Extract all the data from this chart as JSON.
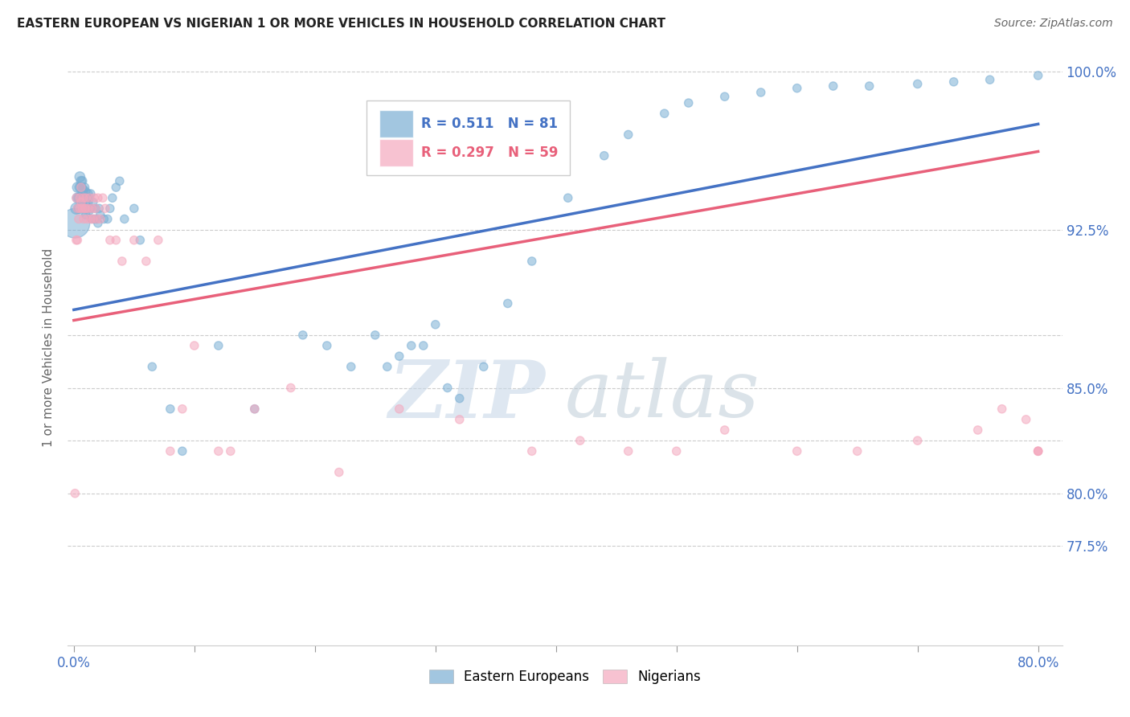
{
  "title": "EASTERN EUROPEAN VS NIGERIAN 1 OR MORE VEHICLES IN HOUSEHOLD CORRELATION CHART",
  "source": "Source: ZipAtlas.com",
  "ylabel": "1 or more Vehicles in Household",
  "blue_color": "#7BAFD4",
  "pink_color": "#F4A8BE",
  "blue_R": 0.511,
  "blue_N": 81,
  "pink_R": 0.297,
  "pink_N": 59,
  "watermark_ZIP": "ZIP",
  "watermark_atlas": "atlas",
  "xlim": [
    -0.005,
    0.82
  ],
  "ylim": [
    0.728,
    1.01
  ],
  "ytick_vals": [
    0.775,
    0.8,
    0.825,
    0.85,
    0.875,
    0.925,
    1.0
  ],
  "ytick_labels_right": [
    "77.5%",
    "80.0%",
    "",
    "85.0%",
    "",
    "92.5%",
    "100.0%"
  ],
  "blue_x": [
    0.001,
    0.002,
    0.003,
    0.003,
    0.004,
    0.004,
    0.005,
    0.005,
    0.005,
    0.006,
    0.006,
    0.007,
    0.007,
    0.007,
    0.008,
    0.008,
    0.008,
    0.009,
    0.009,
    0.009,
    0.01,
    0.01,
    0.01,
    0.011,
    0.011,
    0.012,
    0.012,
    0.013,
    0.013,
    0.014,
    0.014,
    0.015,
    0.016,
    0.017,
    0.018,
    0.019,
    0.02,
    0.021,
    0.022,
    0.025,
    0.028,
    0.03,
    0.032,
    0.035,
    0.038,
    0.042,
    0.05,
    0.055,
    0.065,
    0.08,
    0.09,
    0.12,
    0.15,
    0.19,
    0.21,
    0.23,
    0.25,
    0.26,
    0.27,
    0.28,
    0.29,
    0.3,
    0.31,
    0.32,
    0.34,
    0.36,
    0.38,
    0.41,
    0.44,
    0.46,
    0.49,
    0.51,
    0.54,
    0.57,
    0.6,
    0.63,
    0.66,
    0.7,
    0.73,
    0.76,
    0.8
  ],
  "blue_y": [
    0.928,
    0.935,
    0.94,
    0.945,
    0.935,
    0.94,
    0.94,
    0.945,
    0.95,
    0.945,
    0.948,
    0.94,
    0.944,
    0.948,
    0.936,
    0.94,
    0.944,
    0.935,
    0.94,
    0.945,
    0.932,
    0.938,
    0.943,
    0.935,
    0.94,
    0.938,
    0.942,
    0.934,
    0.94,
    0.935,
    0.942,
    0.93,
    0.938,
    0.93,
    0.935,
    0.93,
    0.928,
    0.935,
    0.932,
    0.93,
    0.93,
    0.935,
    0.94,
    0.945,
    0.948,
    0.93,
    0.935,
    0.92,
    0.86,
    0.84,
    0.82,
    0.87,
    0.84,
    0.875,
    0.87,
    0.86,
    0.875,
    0.86,
    0.865,
    0.87,
    0.87,
    0.88,
    0.85,
    0.845,
    0.86,
    0.89,
    0.91,
    0.94,
    0.96,
    0.97,
    0.98,
    0.985,
    0.988,
    0.99,
    0.992,
    0.993,
    0.993,
    0.994,
    0.995,
    0.996,
    0.998
  ],
  "blue_sizes": [
    700,
    100,
    80,
    80,
    80,
    80,
    80,
    80,
    80,
    70,
    70,
    65,
    65,
    65,
    60,
    60,
    60,
    60,
    60,
    60,
    55,
    55,
    55,
    55,
    55,
    55,
    55,
    55,
    55,
    55,
    55,
    55,
    55,
    55,
    55,
    55,
    55,
    55,
    55,
    55,
    55,
    55,
    55,
    55,
    55,
    55,
    55,
    55,
    55,
    55,
    55,
    55,
    55,
    55,
    55,
    55,
    55,
    55,
    55,
    55,
    55,
    55,
    55,
    55,
    55,
    55,
    55,
    55,
    55,
    55,
    55,
    55,
    55,
    55,
    55,
    55,
    55,
    55,
    55,
    55,
    55
  ],
  "pink_x": [
    0.001,
    0.002,
    0.002,
    0.003,
    0.003,
    0.004,
    0.005,
    0.005,
    0.006,
    0.006,
    0.007,
    0.008,
    0.008,
    0.009,
    0.01,
    0.01,
    0.011,
    0.012,
    0.013,
    0.014,
    0.015,
    0.016,
    0.017,
    0.018,
    0.019,
    0.02,
    0.022,
    0.024,
    0.026,
    0.03,
    0.035,
    0.04,
    0.05,
    0.06,
    0.07,
    0.08,
    0.09,
    0.1,
    0.12,
    0.13,
    0.15,
    0.18,
    0.22,
    0.27,
    0.32,
    0.38,
    0.42,
    0.46,
    0.5,
    0.54,
    0.6,
    0.65,
    0.7,
    0.75,
    0.77,
    0.79,
    0.8,
    0.8,
    0.8
  ],
  "pink_y": [
    0.8,
    0.92,
    0.94,
    0.92,
    0.935,
    0.93,
    0.935,
    0.94,
    0.938,
    0.945,
    0.935,
    0.93,
    0.94,
    0.935,
    0.935,
    0.94,
    0.93,
    0.935,
    0.94,
    0.93,
    0.935,
    0.93,
    0.94,
    0.935,
    0.93,
    0.94,
    0.93,
    0.94,
    0.935,
    0.92,
    0.92,
    0.91,
    0.92,
    0.91,
    0.92,
    0.82,
    0.84,
    0.87,
    0.82,
    0.82,
    0.84,
    0.85,
    0.81,
    0.84,
    0.835,
    0.82,
    0.825,
    0.82,
    0.82,
    0.83,
    0.82,
    0.82,
    0.825,
    0.83,
    0.84,
    0.835,
    0.82,
    0.82,
    0.82
  ],
  "pink_sizes": [
    55,
    55,
    55,
    55,
    55,
    55,
    55,
    55,
    55,
    55,
    55,
    55,
    55,
    55,
    55,
    55,
    55,
    55,
    55,
    55,
    55,
    55,
    55,
    55,
    55,
    55,
    55,
    55,
    55,
    55,
    55,
    55,
    55,
    55,
    55,
    55,
    55,
    55,
    55,
    55,
    55,
    55,
    55,
    55,
    55,
    55,
    55,
    55,
    55,
    55,
    55,
    55,
    55,
    55,
    55,
    55,
    55,
    55,
    55
  ],
  "trend_blue_x0": 0.0,
  "trend_blue_y0": 0.887,
  "trend_blue_x1": 0.8,
  "trend_blue_y1": 0.975,
  "trend_pink_x0": 0.0,
  "trend_pink_y0": 0.882,
  "trend_pink_x1": 0.8,
  "trend_pink_y1": 0.962
}
